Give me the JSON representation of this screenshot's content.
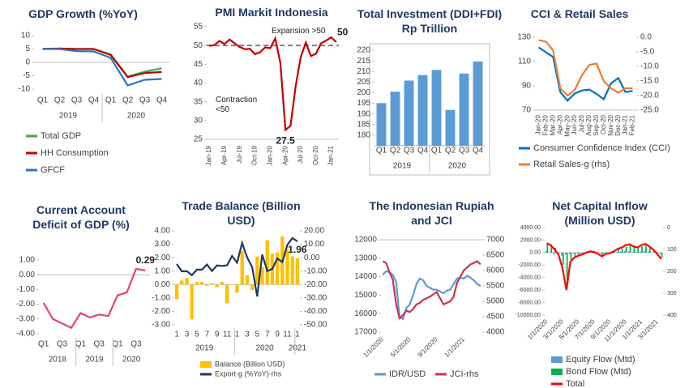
{
  "chart_data": [
    {
      "type": "line",
      "title": "GDP Growth (%YoY)",
      "categories": [
        "Q1",
        "Q2",
        "Q3",
        "Q4",
        "Q1",
        "Q2",
        "Q3",
        "Q4"
      ],
      "x_groups": [
        "2019",
        "2020"
      ],
      "ylim": [
        -10,
        10
      ],
      "yticks": [
        -10,
        -5,
        0,
        5,
        10
      ],
      "legend": "bottom",
      "series": [
        {
          "name": "Total GDP",
          "color": "#2fb14a",
          "values": [
            5.1,
            5.0,
            5.0,
            5.0,
            3.0,
            -5.3,
            -3.5,
            -2.2
          ]
        },
        {
          "name": "HH Consumption",
          "color": "#c00000",
          "values": [
            5.0,
            5.2,
            5.0,
            5.0,
            2.8,
            -5.5,
            -4.0,
            -3.6
          ]
        },
        {
          "name": "GFCF",
          "color": "#2e75b6",
          "values": [
            5.0,
            5.0,
            4.2,
            4.1,
            1.7,
            -8.6,
            -6.5,
            -6.2
          ]
        }
      ]
    },
    {
      "type": "line",
      "title": "PMI Markit Indonesia",
      "categories": [
        "Jan-19",
        null,
        null,
        "Apr-19",
        null,
        null,
        "Jul-19",
        null,
        null,
        "Oct-19",
        null,
        null,
        "Jan-20",
        null,
        null,
        "Apr-20",
        null,
        null,
        "Jul-20",
        null,
        null,
        "Oct-20",
        null,
        null,
        "Jan-21",
        null
      ],
      "values": [
        49.9,
        50.1,
        51.2,
        50.4,
        51.6,
        50.6,
        49.6,
        49.0,
        49.1,
        47.7,
        48.2,
        49.5,
        49.3,
        51.9,
        45.3,
        27.5,
        28.6,
        39.1,
        46.9,
        50.8,
        47.2,
        47.8,
        50.6,
        51.3,
        52.2,
        50.9
      ],
      "color": "#c00000",
      "ylim": [
        25,
        55
      ],
      "yticks": [
        25,
        30,
        35,
        40,
        45,
        50,
        55
      ],
      "reference_line": 50,
      "annotations": [
        "Expansion >50",
        "Contraction <50"
      ]
    },
    {
      "type": "bar",
      "title": "Total Investment (DDI+FDI) Rp Trillion",
      "categories": [
        "Q1",
        "Q2",
        "Q3",
        "Q4",
        "Q1",
        "Q2",
        "Q3",
        "Q4"
      ],
      "x_groups": [
        "2019",
        "2020"
      ],
      "values": [
        195.1,
        200.5,
        205.7,
        208.3,
        210.7,
        191.9,
        209.0,
        214.7
      ],
      "color": "#5b9bd5",
      "ylim": [
        175,
        220
      ],
      "yticks": [
        180,
        185,
        190,
        195,
        200,
        205,
        210,
        215,
        220
      ]
    },
    {
      "type": "line",
      "title": "CCI & Retail Sales",
      "categories": [
        "Jan-20",
        "Feb-20",
        "Mar-20",
        "Apr-20",
        "May-20",
        "Jun-20",
        "Jul-20",
        "Aug-20",
        "Sep-20",
        "Oct-20",
        "Nov-20",
        "Dec-20",
        "Jan-21",
        "Feb-21"
      ],
      "ylim": [
        70,
        130
      ],
      "yticks": [
        70,
        90,
        110,
        130
      ],
      "y2lim": [
        -25,
        0
      ],
      "y2ticks": [
        {
          "value": 0,
          "label": "0.0"
        },
        {
          "value": -5,
          "label": "-5.0"
        },
        {
          "value": -10,
          "label": "-10.0"
        },
        {
          "value": -15,
          "label": "-15.0"
        },
        {
          "value": -20,
          "label": "-20.0"
        },
        {
          "value": -25,
          "label": "-25.0"
        }
      ],
      "legend": "bottom",
      "series": [
        {
          "name": "Consumer Confidence Index (CCI)",
          "color": "#0070c0",
          "values": [
            121.7,
            117.7,
            113.8,
            84.8,
            77.8,
            83.8,
            86.2,
            86.9,
            83.4,
            79.0,
            92.0,
            96.5,
            84.9,
            85.8
          ]
        },
        {
          "name": "Retail Sales-g (rhs)",
          "color": "#ed7d31",
          "axis": "y2",
          "values": [
            -1.0,
            -1.5,
            -4.5,
            -17.5,
            -20.0,
            -18.0,
            -13.0,
            -9.5,
            -9.0,
            -15.0,
            -17.5,
            -19.0,
            -17.5,
            -17.5
          ]
        }
      ]
    },
    {
      "type": "line",
      "title": "Current Account Deficit of GDP (%)",
      "categories": [
        "Q1",
        null,
        "Q3",
        null,
        "Q1",
        null,
        "Q3",
        null,
        "Q1",
        null,
        "Q3",
        null
      ],
      "x_groups": [
        "2018",
        "2019",
        "2020"
      ],
      "values": [
        -1.9,
        -3.0,
        -3.3,
        -3.6,
        -2.6,
        -2.9,
        -2.7,
        -2.8,
        -1.4,
        -1.2,
        0.4,
        0.29
      ],
      "color": "#e0476a",
      "ylim": [
        -4,
        1
      ],
      "yticks": [
        {
          "value": -4,
          "label": "-4.00"
        },
        {
          "value": -3,
          "label": "-3.00"
        },
        {
          "value": -2,
          "label": "-2.00"
        },
        {
          "value": -1,
          "label": "-1.00"
        },
        {
          "value": 0,
          "label": "0.00"
        },
        {
          "value": 1,
          "label": "1.00"
        }
      ]
    },
    {
      "type": "bar",
      "title": "Trade Balance (Billion USD)",
      "categories": [
        "1",
        null,
        "3",
        null,
        "5",
        null,
        "7",
        null,
        "9",
        null,
        "11",
        null,
        "1",
        null,
        "3",
        null,
        "5",
        null,
        "7",
        null,
        "9",
        null,
        "11",
        null,
        "1"
      ],
      "x_groups": [
        "2019",
        "2020",
        "2021"
      ],
      "ylim": [
        -3,
        4
      ],
      "yticks": [
        {
          "value": -3,
          "label": "-3.00"
        },
        {
          "value": -2,
          "label": "-2.00"
        },
        {
          "value": -1,
          "label": "-1.00"
        },
        {
          "value": 0,
          "label": "0.00"
        },
        {
          "value": 1,
          "label": "1.00"
        },
        {
          "value": 2,
          "label": "2.00"
        },
        {
          "value": 3,
          "label": "3.00"
        },
        {
          "value": 4,
          "label": "4.00"
        }
      ],
      "y2lim": [
        -50,
        20
      ],
      "y2ticks": [
        {
          "value": -50,
          "label": "-50.00"
        },
        {
          "value": -40,
          "label": "-40.00"
        },
        {
          "value": -30,
          "label": "-30.00"
        },
        {
          "value": -20,
          "label": "-20.00"
        },
        {
          "value": -10,
          "label": "-10.00"
        },
        {
          "value": 0,
          "label": "0.00"
        },
        {
          "value": 10,
          "label": "10.00"
        },
        {
          "value": 20,
          "label": "20.00"
        }
      ],
      "legend": "bottom",
      "series": [
        {
          "name": "Balance (Billion USD)",
          "type": "bar",
          "color": "#ffc000",
          "values": [
            -1.1,
            0.3,
            0.5,
            -2.6,
            0.2,
            0.2,
            -0.1,
            0.1,
            -0.2,
            0.2,
            -1.4,
            -0.03,
            -0.6,
            2.5,
            0.7,
            -0.4,
            2.1,
            1.3,
            3.3,
            2.3,
            2.4,
            3.6,
            2.6,
            2.1,
            1.96
          ]
        },
        {
          "name": "Export-g (%YoY)-rhs",
          "type": "line",
          "axis": "y2",
          "color": "#1f3864",
          "values": [
            -4.7,
            -10.2,
            -10.0,
            -13.0,
            -8.9,
            -8.9,
            -5.1,
            -9.9,
            -5.7,
            -6.1,
            -5.7,
            1.3,
            -3.7,
            11.0,
            0.2,
            -7.0,
            -28.9,
            2.3,
            -9.9,
            -8.4,
            -0.5,
            -3.3,
            9.5,
            14.6,
            12.2
          ]
        }
      ]
    },
    {
      "type": "line",
      "title": "The Indonesian Rupiah and JCI",
      "categories": [
        "1/1/2020",
        null,
        null,
        null,
        null,
        null,
        null,
        null,
        "5/1/2020",
        null,
        null,
        null,
        null,
        null,
        null,
        null,
        "9/1/2020",
        null,
        null,
        null,
        null,
        null,
        null,
        null,
        "1/1/2021",
        null,
        null,
        null,
        null,
        null
      ],
      "ylim": [
        17000,
        12000
      ],
      "yticks": [
        12000,
        13000,
        14000,
        15000,
        16000,
        17000
      ],
      "y2lim": [
        4000,
        7000
      ],
      "y2ticks": [
        4000,
        4500,
        5000,
        5500,
        6000,
        6500,
        7000
      ],
      "legend": "bottom",
      "series": [
        {
          "name": "IDR/USD",
          "color": "#5b9bd5",
          "values": [
            13900,
            13700,
            13750,
            13900,
            14300,
            16200,
            16300,
            15700,
            15500,
            15000,
            14400,
            14100,
            14200,
            14500,
            14600,
            14700,
            14700,
            14800,
            14900,
            14750,
            14700,
            14400,
            14100,
            14050,
            14100,
            13950,
            14050,
            14200,
            14400,
            14500
          ]
        },
        {
          "name": "JCI-rhs",
          "color": "#c9344f",
          "axis": "y2",
          "values": [
            6300,
            6250,
            5950,
            5700,
            4900,
            4450,
            4550,
            4700,
            4650,
            4750,
            4900,
            4950,
            5050,
            5100,
            5150,
            5230,
            5300,
            5100,
            4900,
            4950,
            5000,
            5150,
            5600,
            5800,
            6000,
            6100,
            6200,
            6250,
            6300,
            6200
          ]
        }
      ]
    },
    {
      "type": "bar",
      "title": "Net Capital Inflow (Million USD)",
      "categories": [
        "1/1/2020",
        null,
        null,
        null,
        "3/1/2020",
        null,
        null,
        null,
        "5/1/2020",
        null,
        null,
        null,
        "7/1/2020",
        null,
        null,
        null,
        "9/1/2020",
        null,
        null,
        null,
        "11/1/2020",
        null,
        null,
        null,
        "1/1/2021",
        null,
        null,
        null,
        "3/1/2021",
        null
      ],
      "ylim": [
        -10000,
        4000
      ],
      "yticks": [
        {
          "value": -10000,
          "label": "-10000.00"
        },
        {
          "value": -8000,
          "label": "-8000.00"
        },
        {
          "value": -6000,
          "label": "-6000.00"
        },
        {
          "value": -4000,
          "label": "-4000.00"
        },
        {
          "value": -2000,
          "label": "-2000.00"
        },
        {
          "value": 0,
          "label": "0.00"
        },
        {
          "value": 2000,
          "label": "2000.00"
        },
        {
          "value": 4000,
          "label": "4000.00"
        }
      ],
      "y2lim": [
        400,
        0
      ],
      "y2ticks": [
        0,
        100,
        200,
        300,
        400
      ],
      "legend": "bottom",
      "series": [
        {
          "name": "Equity Flow (Mtd)",
          "type": "bar",
          "color": "#5b9bd5",
          "values": [
            200,
            -100,
            -300,
            -200,
            -500,
            -300,
            -200,
            -100,
            -200,
            -100,
            -100,
            0,
            -100,
            -200,
            -200,
            -100,
            -100,
            0,
            100,
            200,
            300,
            200,
            100,
            100,
            200,
            300,
            200,
            0,
            -100,
            -200
          ]
        },
        {
          "name": "Bond Flow (Mtd)",
          "type": "bar",
          "color": "#00b050",
          "values": [
            1300,
            1300,
            800,
            -100,
            -2000,
            -5700,
            -1300,
            -700,
            -300,
            -200,
            100,
            200,
            200,
            0,
            -400,
            -100,
            0,
            200,
            500,
            600,
            900,
            1100,
            900,
            700,
            1000,
            1100,
            800,
            500,
            -100,
            -800
          ]
        },
        {
          "name": "Total",
          "type": "line",
          "color": "#ff0000",
          "values": [
            1500,
            1200,
            500,
            -300,
            -2500,
            -6000,
            -1500,
            -800,
            -500,
            -300,
            0,
            200,
            100,
            -200,
            -600,
            -200,
            -100,
            200,
            600,
            800,
            1200,
            1300,
            1000,
            800,
            1200,
            1400,
            1000,
            500,
            -200,
            -1000
          ]
        }
      ]
    }
  ]
}
